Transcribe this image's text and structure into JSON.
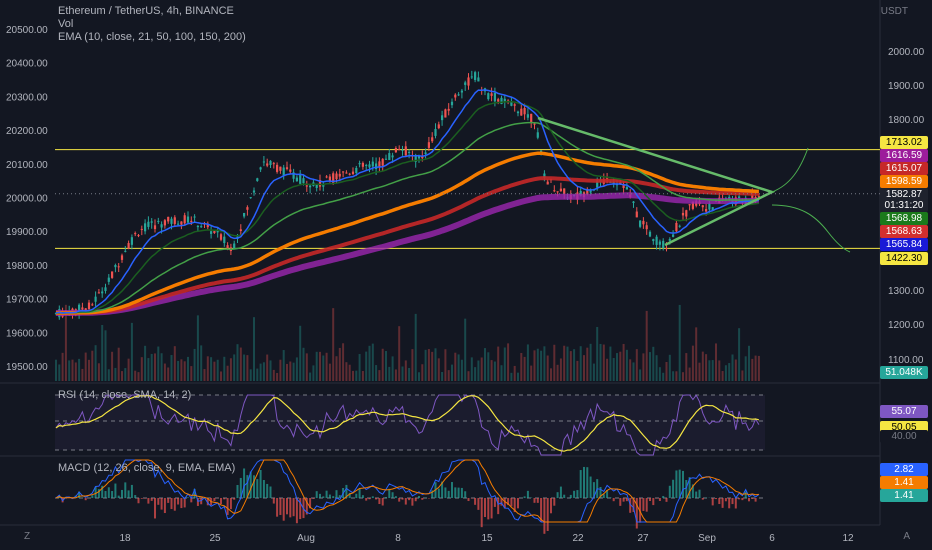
{
  "header": {
    "title": "Ethereum / TetherUS, 4h, BINANCE",
    "vol_label": "Vol",
    "ema_label": "EMA (10, close, 21, 50, 100, 150, 200)",
    "currency": "USDT"
  },
  "rsi_label": "RSI (14, close, SMA, 14, 2)",
  "macd_label": "MACD (12, 26, close, 9, EMA, EMA)",
  "corner_left": "Z",
  "corner_right": "A",
  "chart_data": {
    "type": "candlestick",
    "x_ticks": [
      "18",
      "25",
      "Aug",
      "8",
      "15",
      "22",
      "27",
      "Sep",
      "6",
      "12"
    ],
    "left_axis_ticks": [
      "20500.00",
      "20400.00",
      "20300.00",
      "20200.00",
      "20100.00",
      "20000.00",
      "19900.00",
      "19800.00",
      "19700.00",
      "19600.00",
      "19500.00"
    ],
    "right_axis_ticks": [
      "2000.00",
      "1900.00",
      "1800.00",
      "1300.00",
      "1200.00",
      "1100.00"
    ],
    "price_badges": [
      {
        "value": "1713.02",
        "bg": "#f5e642",
        "fg": "#000000"
      },
      {
        "value": "1616.59",
        "bg": "#9c1c9b",
        "fg": "#ffffff"
      },
      {
        "value": "1615.07",
        "bg": "#c62828",
        "fg": "#ffffff"
      },
      {
        "value": "1598.59",
        "bg": "#f57c00",
        "fg": "#ffffff"
      },
      {
        "value": "1582.87",
        "bg": "#1e222d",
        "fg": "#ffffff"
      },
      {
        "value": "01:31:20",
        "bg": "#1e222d",
        "fg": "#ffffff"
      },
      {
        "value": "1568.98",
        "bg": "#1b7a1b",
        "fg": "#ffffff"
      },
      {
        "value": "1568.63",
        "bg": "#d32f2f",
        "fg": "#ffffff"
      },
      {
        "value": "1565.84",
        "bg": "#1a1ad6",
        "fg": "#ffffff"
      },
      {
        "value": "1422.30",
        "bg": "#f5e642",
        "fg": "#000000"
      },
      {
        "value": "51.048K",
        "bg": "#26a69a",
        "fg": "#ffffff"
      }
    ],
    "rsi_badges": [
      {
        "value": "55.07",
        "bg": "#7e57c2",
        "fg": "#ffffff"
      },
      {
        "value": "50.05",
        "bg": "#f5e642",
        "fg": "#000000"
      },
      {
        "value": "40.00",
        "bg": "#131722",
        "fg": "#787b86"
      }
    ],
    "macd_badges": [
      {
        "value": "2.82",
        "bg": "#2962ff",
        "fg": "#ffffff"
      },
      {
        "value": "1.41",
        "bg": "#f57c00",
        "fg": "#ffffff"
      },
      {
        "value": "1.41",
        "bg": "#26a69a",
        "fg": "#ffffff"
      }
    ],
    "support_level": 1422.3,
    "resistance_level": 1713.02,
    "colors": {
      "up": "#26a69a",
      "down": "#ef5350",
      "ema10": "#2962ff",
      "ema21": "#1b5e20",
      "ema50": "#43a047",
      "ema100": "#f57c00",
      "ema150": "#c62828",
      "ema200": "#9c27b0",
      "triangle": "#66bb6a",
      "hline": "#f5e642",
      "rsi": "#7e57c2",
      "rsi_ma": "#f5e642",
      "macd": "#2962ff",
      "signal": "#f57c00"
    }
  }
}
